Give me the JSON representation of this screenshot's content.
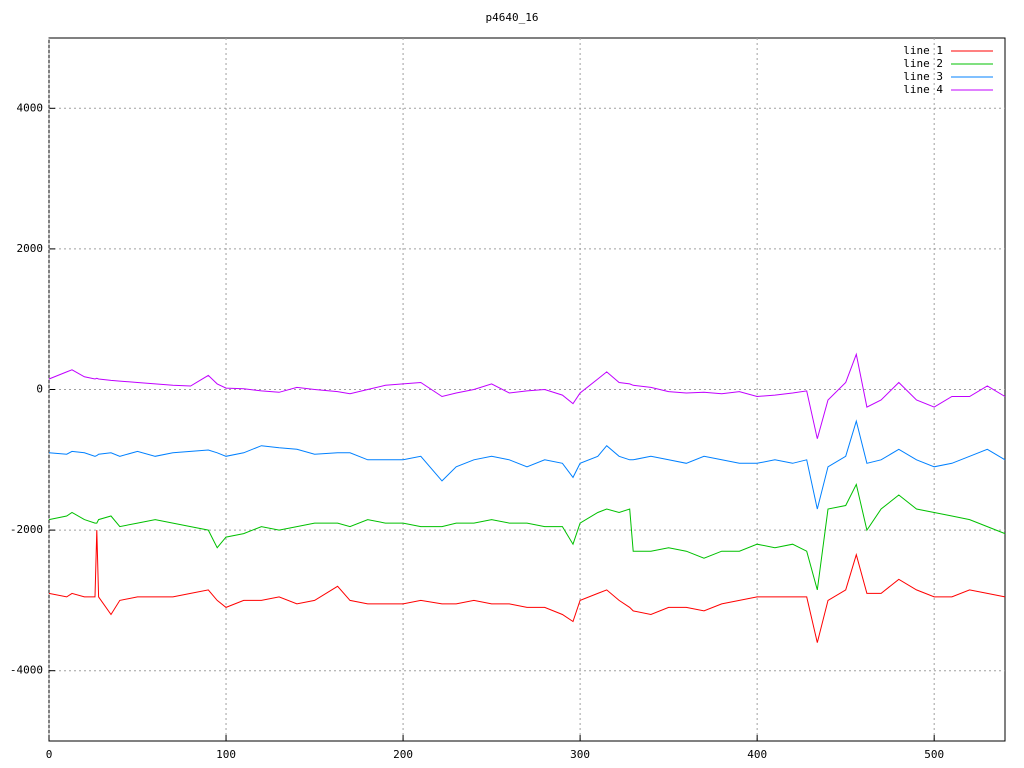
{
  "chart_data": {
    "type": "line",
    "title": "p4640_16",
    "x": [
      0,
      10,
      13,
      20,
      26,
      27,
      28,
      35,
      40,
      50,
      60,
      70,
      80,
      90,
      95,
      100,
      110,
      120,
      130,
      140,
      150,
      163,
      170,
      180,
      190,
      200,
      210,
      222,
      230,
      240,
      250,
      260,
      270,
      280,
      290,
      296,
      300,
      310,
      315,
      322,
      328,
      330,
      340,
      350,
      360,
      370,
      380,
      390,
      400,
      410,
      420,
      428,
      434,
      440,
      450,
      456,
      462,
      470,
      480,
      490,
      500,
      510,
      520,
      530,
      540
    ],
    "series": [
      {
        "name": "line 1",
        "color": "#ff0000",
        "values": [
          -2900,
          -2950,
          -2900,
          -2950,
          -2950,
          -2000,
          -2950,
          -3200,
          -3000,
          -2950,
          -2950,
          -2950,
          -2900,
          -2850,
          -3000,
          -3100,
          -3000,
          -3000,
          -2950,
          -3050,
          -3000,
          -2800,
          -3000,
          -3050,
          -3050,
          -3050,
          -3000,
          -3050,
          -3050,
          -3000,
          -3050,
          -3050,
          -3100,
          -3100,
          -3200,
          -3300,
          -3000,
          -2900,
          -2850,
          -3000,
          -3100,
          -3150,
          -3200,
          -3100,
          -3100,
          -3150,
          -3050,
          -3000,
          -2950,
          -2950,
          -2950,
          -2950,
          -3600,
          -3000,
          -2850,
          -2350,
          -2900,
          -2900,
          -2700,
          -2850,
          -2950,
          -2950,
          -2850,
          -2900,
          -2950
        ]
      },
      {
        "name": "line 2",
        "color": "#00c000",
        "values": [
          -1850,
          -1800,
          -1750,
          -1850,
          -1900,
          -1900,
          -1850,
          -1800,
          -1950,
          -1900,
          -1850,
          -1900,
          -1950,
          -2000,
          -2250,
          -2100,
          -2050,
          -1950,
          -2000,
          -1950,
          -1900,
          -1900,
          -1950,
          -1850,
          -1900,
          -1900,
          -1950,
          -1950,
          -1900,
          -1900,
          -1850,
          -1900,
          -1900,
          -1950,
          -1950,
          -2200,
          -1900,
          -1750,
          -1700,
          -1750,
          -1700,
          -2300,
          -2300,
          -2250,
          -2300,
          -2400,
          -2300,
          -2300,
          -2200,
          -2250,
          -2200,
          -2300,
          -2850,
          -1700,
          -1650,
          -1350,
          -2000,
          -1700,
          -1500,
          -1700,
          -1750,
          -1800,
          -1850,
          -1950,
          -2050
        ]
      },
      {
        "name": "line 3",
        "color": "#0080ff",
        "values": [
          -900,
          -920,
          -880,
          -900,
          -950,
          -940,
          -920,
          -900,
          -950,
          -880,
          -950,
          -900,
          -880,
          -860,
          -900,
          -950,
          -900,
          -800,
          -830,
          -850,
          -920,
          -900,
          -900,
          -1000,
          -1000,
          -1000,
          -950,
          -1300,
          -1100,
          -1000,
          -950,
          -1000,
          -1100,
          -1000,
          -1050,
          -1250,
          -1050,
          -950,
          -800,
          -950,
          -1000,
          -1000,
          -950,
          -1000,
          -1050,
          -950,
          -1000,
          -1050,
          -1050,
          -1000,
          -1050,
          -1000,
          -1700,
          -1100,
          -950,
          -450,
          -1050,
          -1000,
          -850,
          -1000,
          -1100,
          -1050,
          -950,
          -850,
          -1000
        ]
      },
      {
        "name": "line 4",
        "color": "#c000ff",
        "values": [
          150,
          250,
          280,
          180,
          150,
          160,
          150,
          130,
          120,
          100,
          80,
          60,
          50,
          200,
          80,
          20,
          10,
          -20,
          -40,
          30,
          0,
          -30,
          -60,
          0,
          60,
          80,
          100,
          -100,
          -50,
          0,
          80,
          -50,
          -20,
          0,
          -80,
          -200,
          -50,
          150,
          250,
          100,
          80,
          60,
          30,
          -30,
          -50,
          -40,
          -60,
          -30,
          -100,
          -80,
          -50,
          -20,
          -700,
          -150,
          100,
          500,
          -250,
          -150,
          100,
          -150,
          -250,
          -100,
          -100,
          50,
          -100
        ]
      }
    ],
    "xlim": [
      0,
      540
    ],
    "xticks": [
      0,
      100,
      200,
      300,
      400,
      500
    ],
    "ylim": [
      -5000,
      5000
    ],
    "yticks": [
      -4000,
      -2000,
      0,
      2000,
      4000
    ],
    "grid": true,
    "legend": "top-right"
  }
}
